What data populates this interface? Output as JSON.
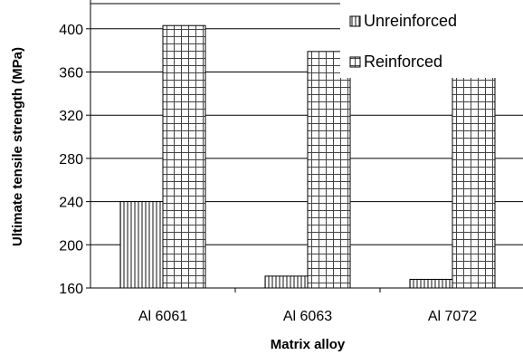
{
  "chart_data": {
    "type": "bar",
    "categories": [
      "Al 6061",
      "Al 6063",
      "Al 7072"
    ],
    "series": [
      {
        "name": "Unreinforced",
        "values": [
          240,
          171,
          168
        ],
        "pattern": "vertical-stripes"
      },
      {
        "name": "Reinforced",
        "values": [
          403,
          379,
          361
        ],
        "pattern": "grid"
      }
    ],
    "xlabel": "Matrix alloy",
    "ylabel": "Ultimate tensile strength (MPa)",
    "ylim": [
      160,
      420
    ],
    "yticks": [
      160,
      200,
      240,
      280,
      320,
      360,
      400
    ],
    "grid": true,
    "legend": "top-right",
    "colors": {
      "gridline": "#000000",
      "bar_stroke": "#000000",
      "pattern": "#555555",
      "background": "#ffffff"
    }
  }
}
